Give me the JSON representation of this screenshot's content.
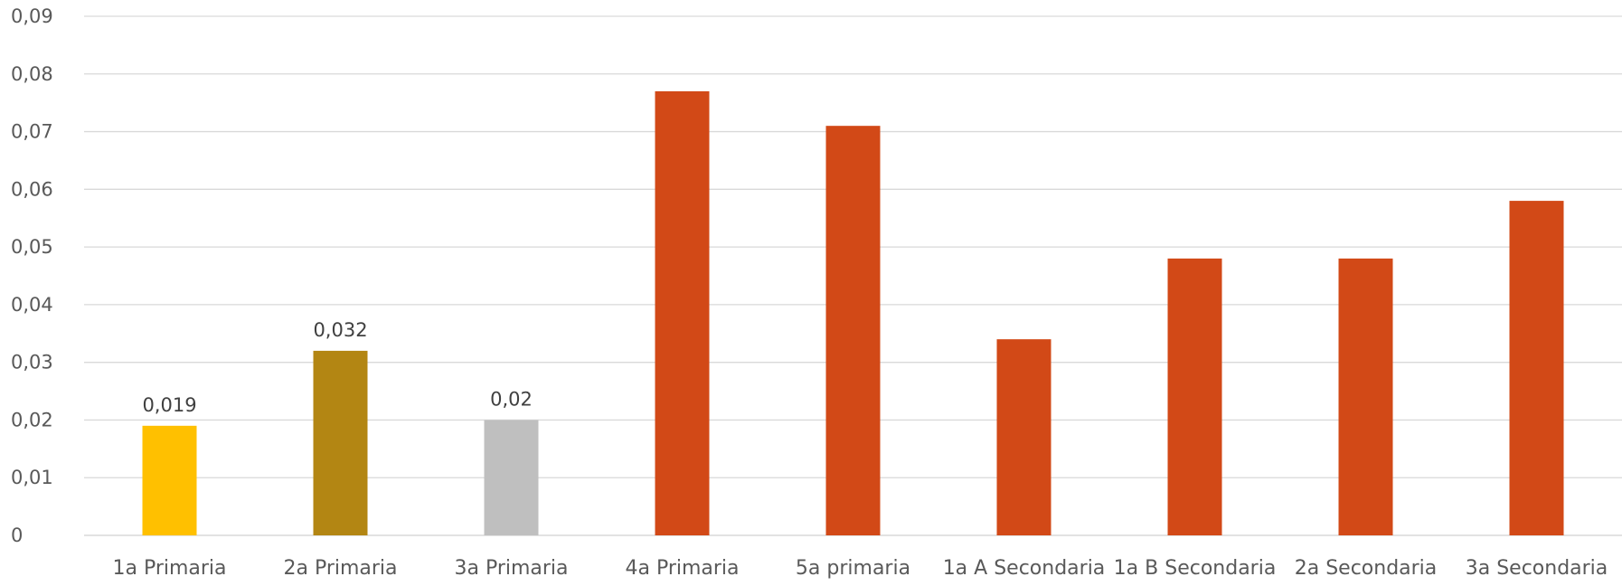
{
  "chart_data": {
    "type": "bar",
    "title": "",
    "xlabel": "",
    "ylabel": "",
    "ylim": [
      0,
      0.09
    ],
    "y_ticks": [
      0,
      0.01,
      0.02,
      0.03,
      0.04,
      0.05,
      0.06,
      0.07,
      0.08,
      0.09
    ],
    "y_tick_labels": [
      "0",
      "0,01",
      "0,02",
      "0,03",
      "0,04",
      "0,05",
      "0,06",
      "0,07",
      "0,08",
      "0,09"
    ],
    "grid": true,
    "legend": "none",
    "categories": [
      "1a Primaria",
      "2a Primaria",
      "3a Primaria",
      "4a Primaria",
      "5a primaria",
      "1a A Secondaria",
      "1a B Secondaria",
      "2a Secondaria",
      "3a Secondaria"
    ],
    "values": [
      0.019,
      0.032,
      0.02,
      0.077,
      0.071,
      0.034,
      0.048,
      0.048,
      0.058
    ],
    "colors": [
      "#FFC000",
      "#B38613",
      "#BFBFBF",
      "#D24917",
      "#D24917",
      "#D24917",
      "#D24917",
      "#D24917",
      "#D24917"
    ],
    "data_labels": [
      "0,019",
      "0,032",
      "0,02",
      "",
      "",
      "",
      "",
      "",
      ""
    ]
  }
}
